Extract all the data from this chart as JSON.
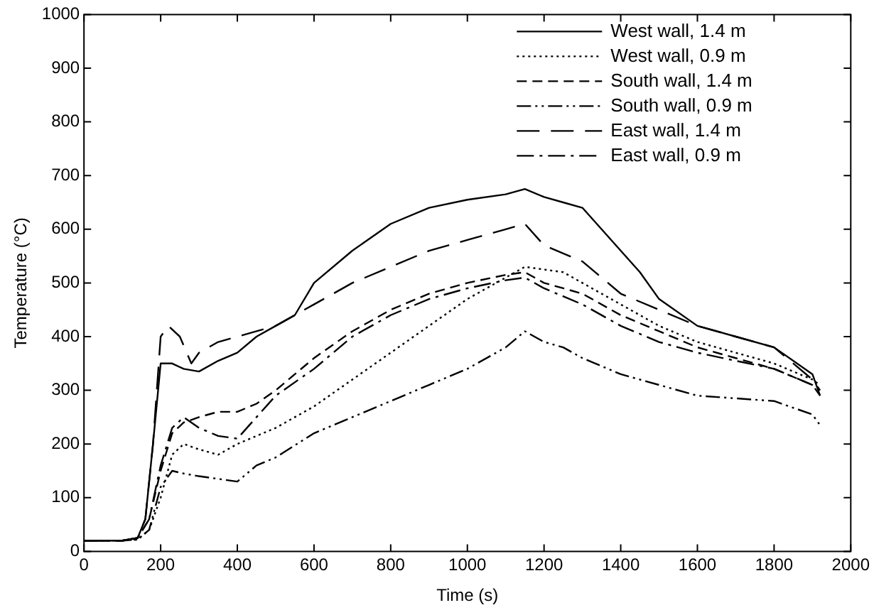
{
  "chart_data": {
    "type": "line",
    "xlabel": "Time (s)",
    "ylabel": "Temperature (°C)",
    "xlim": [
      0,
      2000
    ],
    "xticks": [
      0,
      200,
      400,
      600,
      800,
      1000,
      1200,
      1400,
      1600,
      1800,
      2000
    ],
    "ylim": [
      0,
      1000
    ],
    "yticks": [
      0,
      100,
      200,
      300,
      400,
      500,
      600,
      700,
      800,
      900,
      1000
    ],
    "grid": false,
    "legend": "top right",
    "marker": "none",
    "series": [
      {
        "name": "West wall, 1.4 m",
        "color": "#000000",
        "line_style": "solid",
        "x": [
          0,
          100,
          140,
          160,
          180,
          200,
          230,
          260,
          300,
          350,
          400,
          450,
          500,
          550,
          600,
          700,
          800,
          900,
          1000,
          1100,
          1150,
          1200,
          1250,
          1300,
          1350,
          1400,
          1450,
          1500,
          1600,
          1700,
          1800,
          1900,
          1920
        ],
        "values": [
          20,
          20,
          25,
          60,
          200,
          350,
          350,
          340,
          335,
          355,
          370,
          400,
          420,
          440,
          500,
          560,
          610,
          640,
          655,
          665,
          675,
          660,
          650,
          640,
          600,
          560,
          520,
          470,
          420,
          400,
          380,
          330,
          290
        ]
      },
      {
        "name": "West wall, 0.9 m",
        "color": "#000000",
        "line_style": "dotted",
        "x": [
          0,
          100,
          140,
          170,
          200,
          230,
          260,
          300,
          350,
          400,
          450,
          500,
          600,
          700,
          800,
          900,
          1000,
          1100,
          1150,
          1200,
          1250,
          1300,
          1400,
          1500,
          1600,
          1700,
          1800,
          1900,
          1920
        ],
        "values": [
          20,
          20,
          22,
          40,
          100,
          180,
          200,
          190,
          180,
          200,
          215,
          230,
          270,
          320,
          370,
          420,
          470,
          510,
          530,
          525,
          520,
          500,
          460,
          420,
          390,
          370,
          350,
          320,
          310
        ]
      },
      {
        "name": "South wall, 1.4 m",
        "color": "#000000",
        "line_style": "dashed",
        "x": [
          0,
          100,
          140,
          170,
          200,
          230,
          260,
          300,
          350,
          400,
          450,
          500,
          600,
          700,
          800,
          900,
          1000,
          1100,
          1150,
          1200,
          1250,
          1300,
          1400,
          1500,
          1600,
          1700,
          1800,
          1900,
          1920
        ],
        "values": [
          20,
          20,
          25,
          60,
          150,
          220,
          240,
          250,
          260,
          260,
          275,
          300,
          360,
          410,
          450,
          480,
          500,
          515,
          520,
          500,
          490,
          480,
          440,
          410,
          380,
          360,
          340,
          310,
          290
        ]
      },
      {
        "name": "South wall, 0.9 m",
        "color": "#000000",
        "line_style": "dashdotdot",
        "x": [
          0,
          100,
          140,
          170,
          200,
          230,
          260,
          300,
          350,
          400,
          450,
          500,
          600,
          700,
          800,
          900,
          1000,
          1100,
          1150,
          1200,
          1250,
          1300,
          1400,
          1500,
          1600,
          1700,
          1800,
          1900,
          1920
        ],
        "values": [
          20,
          20,
          22,
          40,
          120,
          150,
          145,
          140,
          135,
          130,
          160,
          175,
          220,
          250,
          280,
          310,
          340,
          380,
          410,
          390,
          380,
          360,
          330,
          310,
          290,
          285,
          280,
          255,
          235
        ]
      },
      {
        "name": "East wall, 1.4 m",
        "color": "#000000",
        "line_style": "longdash",
        "x": [
          0,
          100,
          140,
          160,
          180,
          200,
          220,
          250,
          280,
          300,
          350,
          400,
          450,
          500,
          600,
          700,
          800,
          900,
          1000,
          1100,
          1150,
          1200,
          1300,
          1400,
          1500,
          1600,
          1700,
          1800,
          1900,
          1920
        ],
        "values": [
          20,
          20,
          25,
          60,
          200,
          400,
          420,
          400,
          350,
          370,
          390,
          400,
          410,
          420,
          460,
          500,
          530,
          560,
          580,
          600,
          610,
          570,
          540,
          480,
          450,
          420,
          400,
          380,
          320,
          300
        ]
      },
      {
        "name": "East wall, 0.9 m",
        "color": "#000000",
        "line_style": "dashdot",
        "x": [
          0,
          100,
          140,
          170,
          200,
          230,
          260,
          300,
          350,
          400,
          450,
          500,
          600,
          700,
          800,
          900,
          1000,
          1100,
          1150,
          1200,
          1300,
          1400,
          1500,
          1600,
          1700,
          1800,
          1900,
          1920
        ],
        "values": [
          20,
          20,
          25,
          60,
          160,
          230,
          250,
          230,
          215,
          210,
          250,
          290,
          340,
          400,
          440,
          470,
          490,
          505,
          510,
          490,
          460,
          420,
          390,
          370,
          355,
          340,
          310,
          300
        ]
      }
    ]
  }
}
